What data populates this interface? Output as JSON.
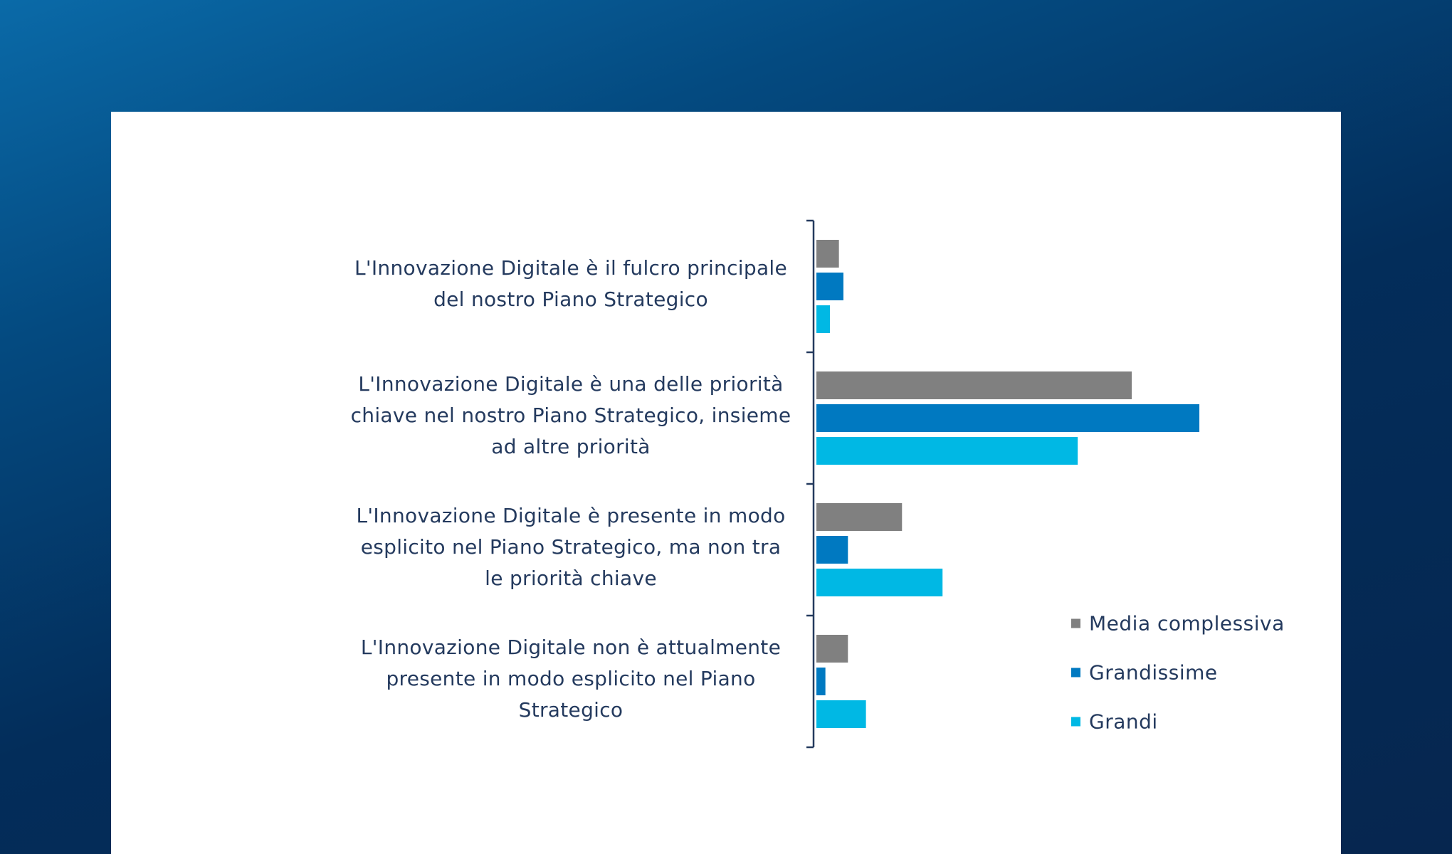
{
  "chart_data": {
    "type": "bar",
    "orientation": "horizontal",
    "categories": [
      "L'Innovazione Digitale è il fulcro principale del nostro Piano Strategico",
      "L'Innovazione Digitale è una delle priorità chiave nel nostro Piano Strategico, insieme ad altre priorità",
      "L'Innovazione Digitale è presente in modo esplicito nel Piano Strategico, ma non tra le priorità chiave",
      "L'Innovazione Digitale non è attualmente presente in modo esplicito nel Piano Strategico"
    ],
    "series": [
      {
        "name": "Media complessiva",
        "color": "#808080",
        "values": [
          5,
          70,
          19,
          7
        ]
      },
      {
        "name": "Grandissime",
        "color": "#0079c1",
        "values": [
          6,
          85,
          7,
          2
        ]
      },
      {
        "name": "Grandi",
        "color": "#00b8e4",
        "values": [
          3,
          58,
          28,
          11
        ]
      }
    ],
    "xlim": [
      0,
      100
    ],
    "grid": false,
    "legend_position": "bottom-right",
    "axis_color": "#243a5e"
  }
}
